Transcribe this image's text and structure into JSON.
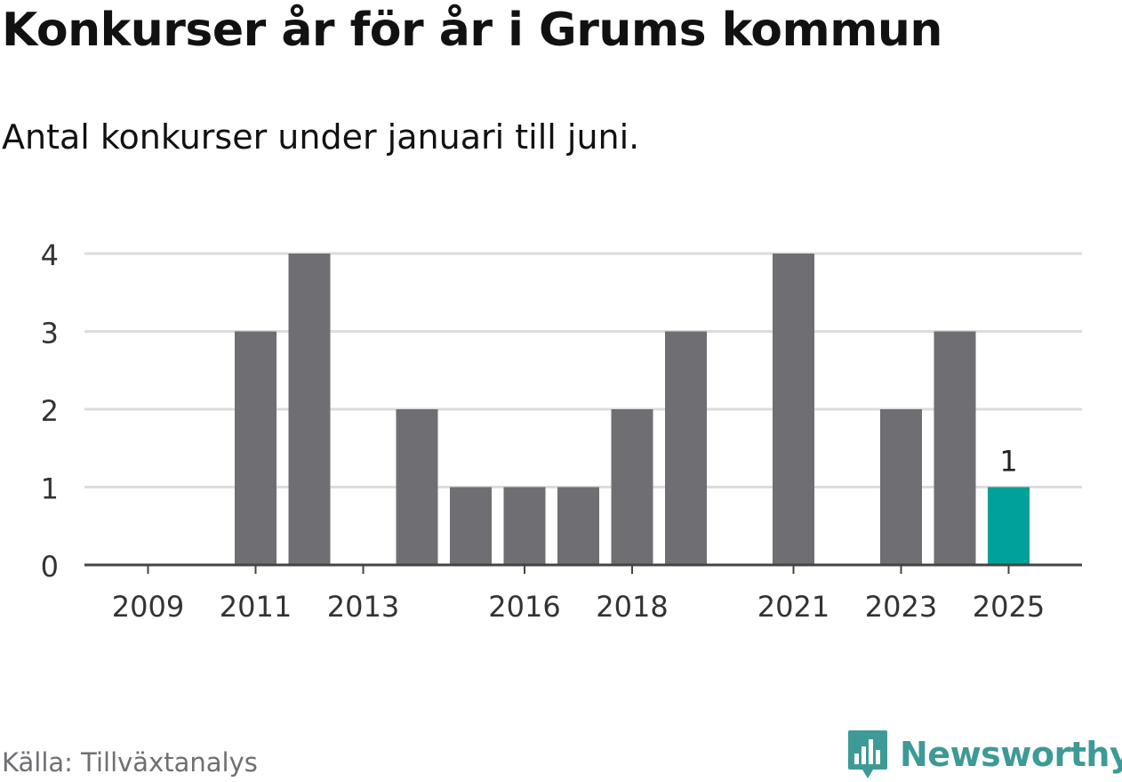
{
  "title": "Konkurser år för år i Grums kommun",
  "subtitle": "Antal konkurser under januari till juni.",
  "source": "Källa: Tillväxtanalys",
  "logo": {
    "text": "Newsworthy",
    "icon": "bar-chart-pin-icon"
  },
  "colors": {
    "bar": "#6f6e73",
    "highlight": "#00a19a",
    "grid": "#dcdcdc",
    "axis": "#444444",
    "text": "#333333",
    "logo": "#3d9a96"
  },
  "chart_data": {
    "type": "bar",
    "categories": [
      "2009",
      "2010",
      "2011",
      "2012",
      "2013",
      "2014",
      "2015",
      "2016",
      "2017",
      "2018",
      "2019",
      "2020",
      "2021",
      "2022",
      "2023",
      "2024",
      "2025"
    ],
    "values": [
      0,
      0,
      3,
      4,
      0,
      2,
      1,
      1,
      1,
      2,
      3,
      0,
      4,
      0,
      2,
      3,
      1
    ],
    "x_tick_labels": [
      "2009",
      "2011",
      "2013",
      "2016",
      "2018",
      "2021",
      "2023",
      "2025"
    ],
    "y_ticks": [
      0,
      1,
      2,
      3,
      4
    ],
    "ylim": [
      0,
      4
    ],
    "highlight_category": "2025",
    "data_labels": [
      {
        "category": "2025",
        "text": "1"
      }
    ],
    "xlabel": "",
    "ylabel": "",
    "grid": true
  }
}
